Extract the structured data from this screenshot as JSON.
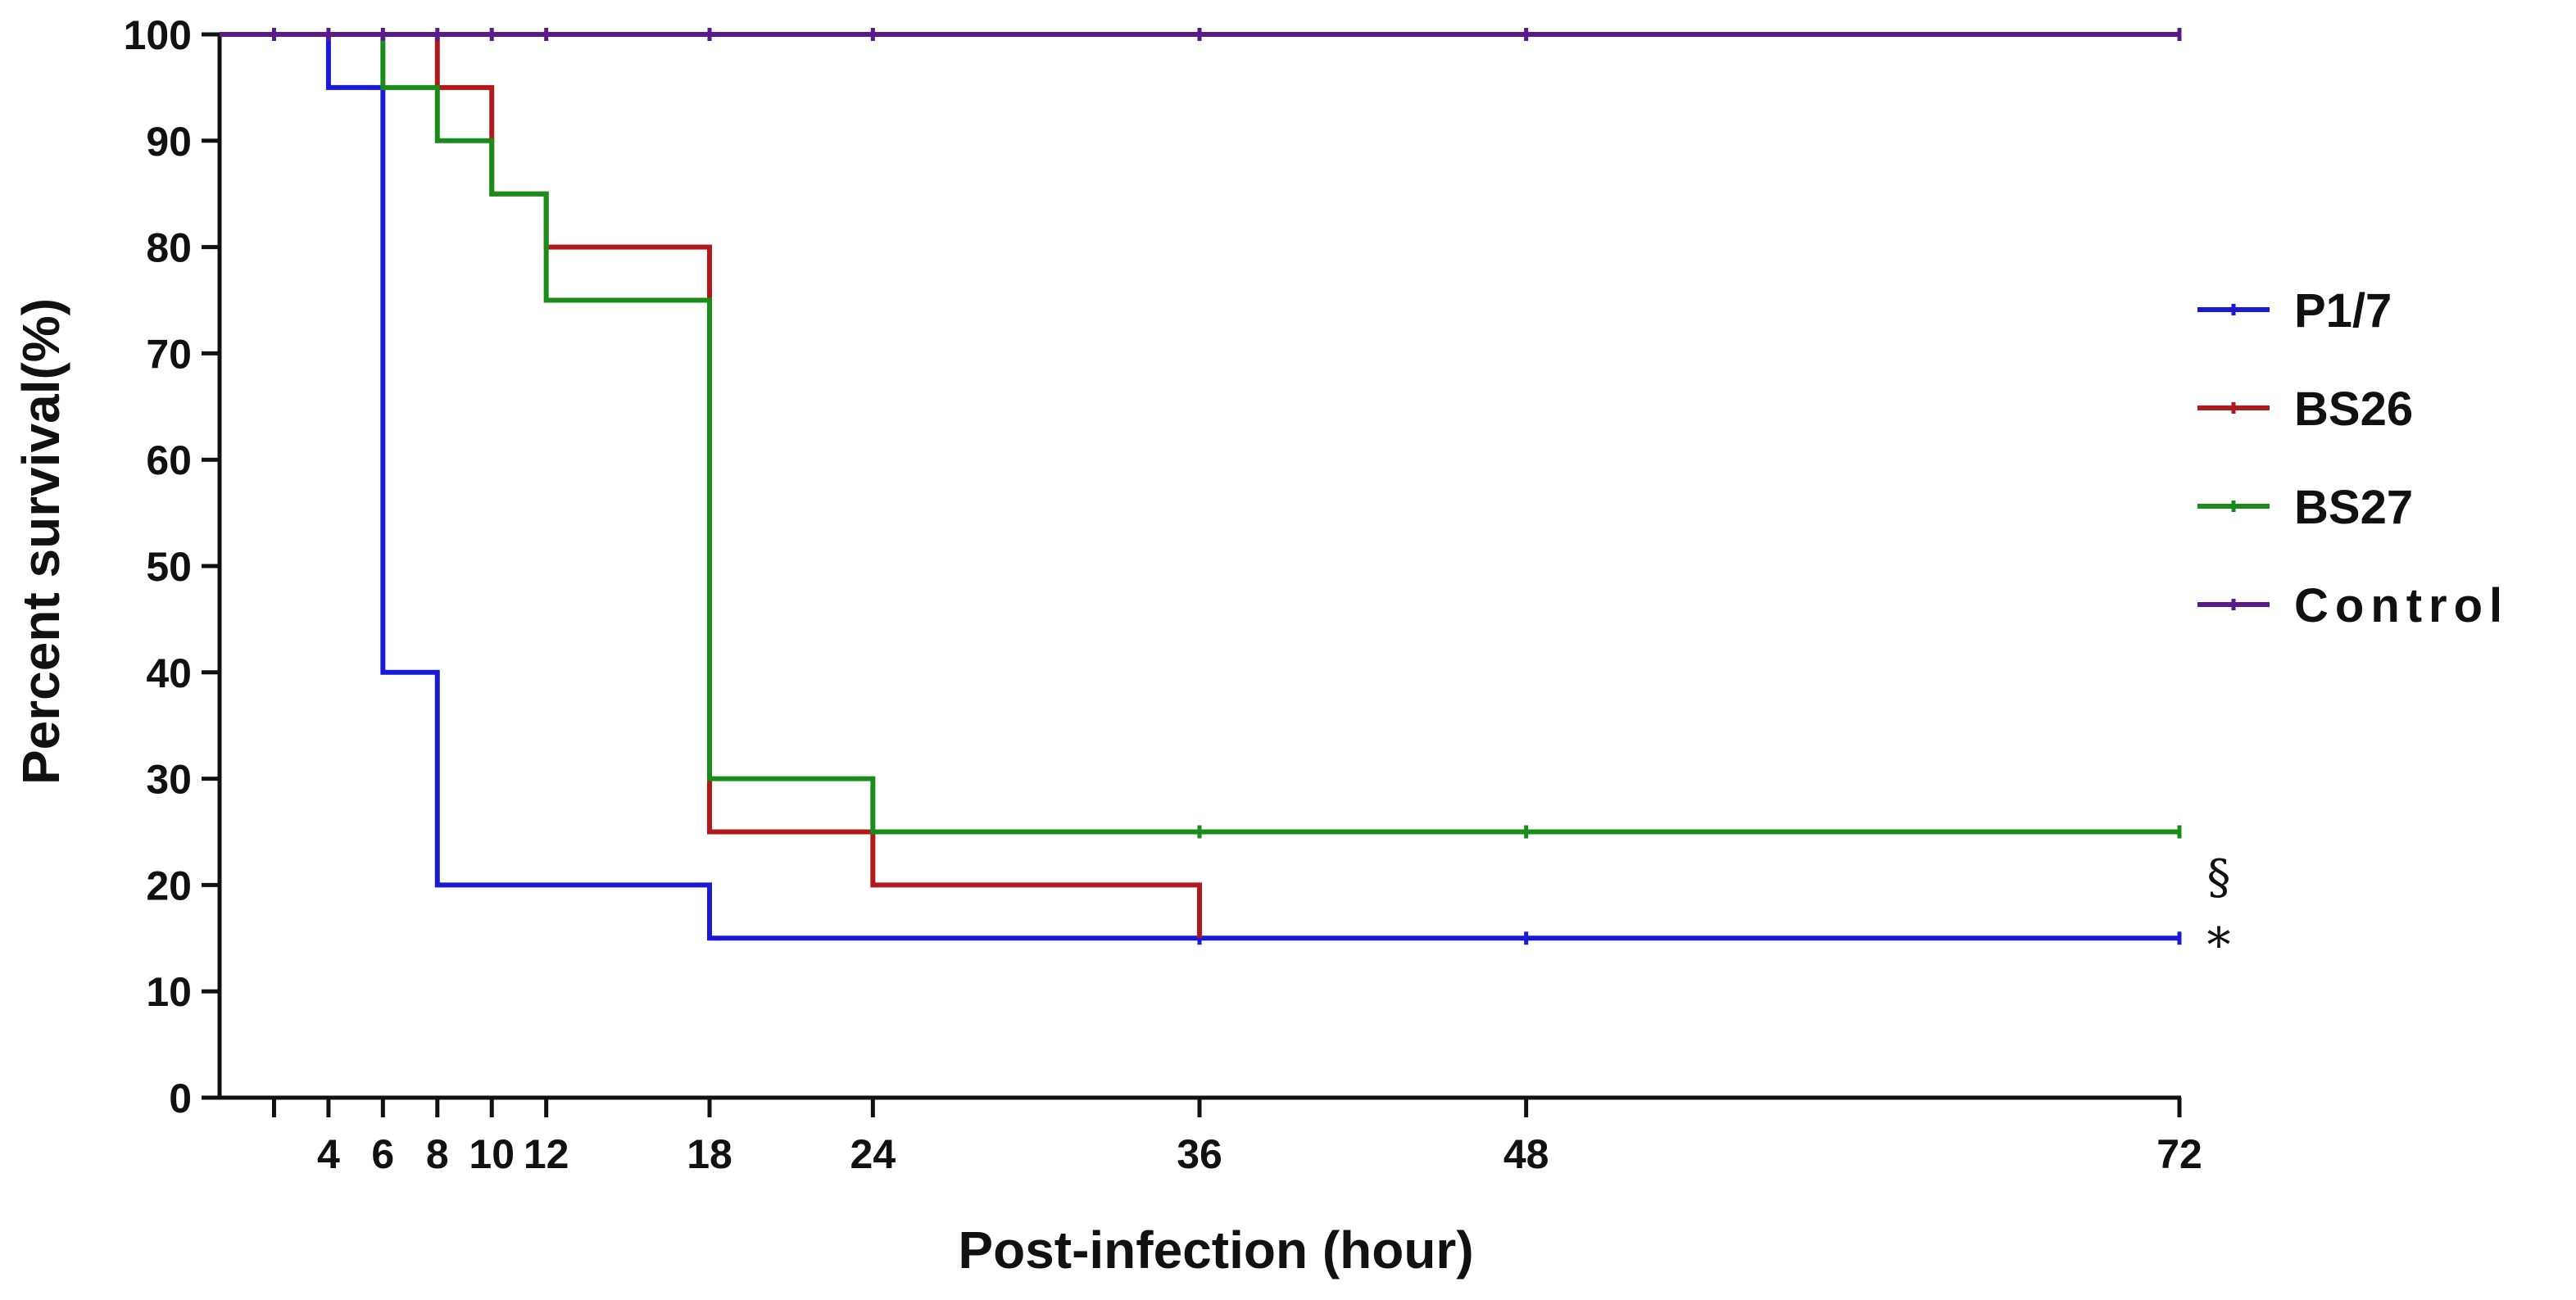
{
  "chart_data": {
    "type": "line",
    "subtype": "step (Kaplan-Meier survival curve)",
    "title": "",
    "xlabel": "Post-infection (hour)",
    "ylabel": "Percent survival(%)",
    "xlim": [
      0,
      72
    ],
    "ylim": [
      0,
      100
    ],
    "x_ticks": [
      2,
      4,
      6,
      8,
      10,
      12,
      18,
      24,
      36,
      48,
      72
    ],
    "x_tick_labels": [
      "",
      "4",
      "6",
      "8",
      "10",
      "12",
      "18",
      "24",
      "36",
      "48",
      "72"
    ],
    "y_ticks": [
      0,
      10,
      20,
      30,
      40,
      50,
      60,
      70,
      80,
      90,
      100
    ],
    "y_tick_labels": [
      "0",
      "10",
      "20",
      "30",
      "40",
      "50",
      "60",
      "70",
      "80",
      "90",
      "100"
    ],
    "grid": false,
    "legend_position": "right",
    "series": [
      {
        "name": "P1/7",
        "color": "#1a1ad6",
        "steps": [
          [
            0,
            100
          ],
          [
            4,
            95
          ],
          [
            6,
            40
          ],
          [
            8,
            20
          ],
          [
            18,
            15
          ]
        ],
        "end_x": 72,
        "censor_x": [
          36,
          48,
          72
        ],
        "annotation": "*"
      },
      {
        "name": "BS26",
        "color": "#b01a1a",
        "steps": [
          [
            0,
            100
          ],
          [
            8,
            95
          ],
          [
            10,
            85
          ],
          [
            12,
            80
          ],
          [
            18,
            25
          ],
          [
            24,
            20
          ],
          [
            36,
            15
          ]
        ],
        "end_x": 36,
        "censor_x": [],
        "annotation": ""
      },
      {
        "name": "BS27",
        "color": "#1a8c1a",
        "steps": [
          [
            0,
            100
          ],
          [
            6,
            95
          ],
          [
            8,
            90
          ],
          [
            10,
            85
          ],
          [
            12,
            75
          ],
          [
            18,
            30
          ],
          [
            24,
            25
          ]
        ],
        "end_x": 72,
        "censor_x": [
          36,
          48,
          72
        ],
        "annotation": "§"
      },
      {
        "name": "Control",
        "color": "#5a1a8c",
        "steps": [
          [
            0,
            100
          ]
        ],
        "end_x": 72,
        "censor_x": [
          2,
          4,
          6,
          8,
          10,
          12,
          18,
          24,
          36,
          48,
          72
        ],
        "annotation": ""
      }
    ]
  }
}
